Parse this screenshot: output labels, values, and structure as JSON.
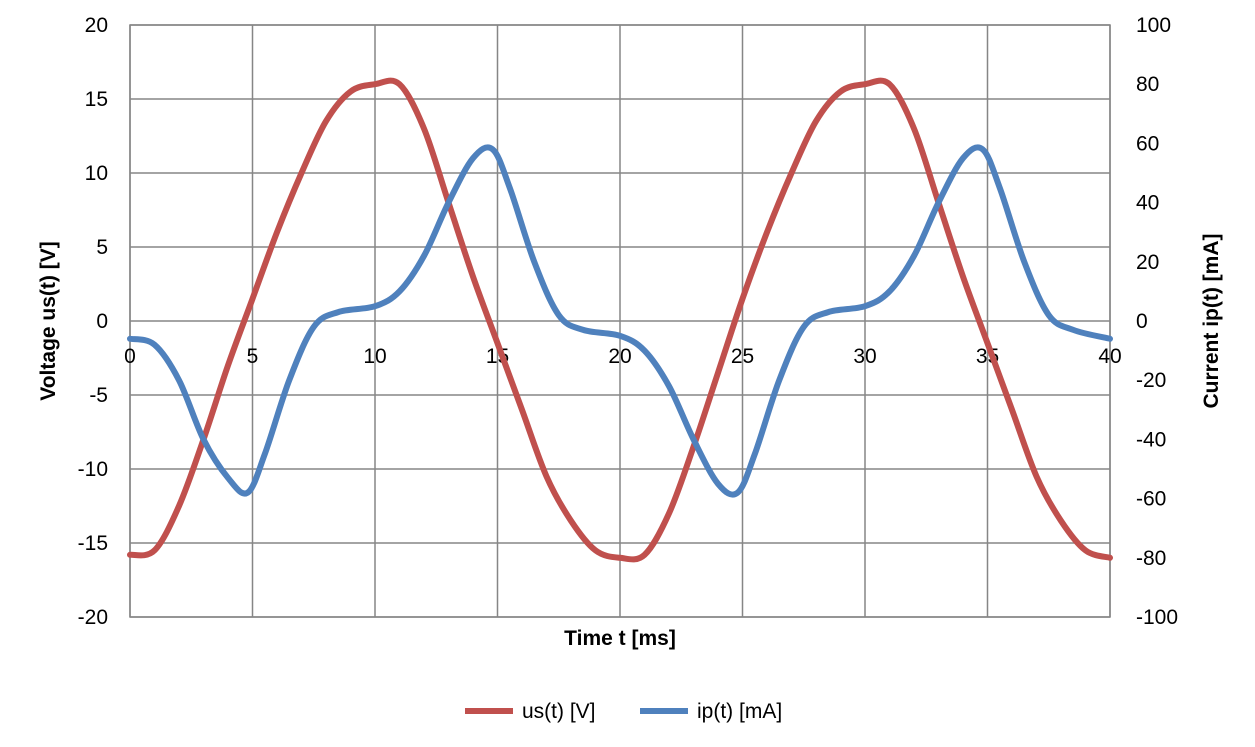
{
  "chart_data": {
    "type": "line",
    "xlabel": "Time t [ms]",
    "ylabel_left": "Voltage us(t) [V]",
    "ylabel_right": "Current ip(t) [mA]",
    "x_ticks": [
      0,
      5,
      10,
      15,
      20,
      25,
      30,
      35,
      40
    ],
    "y_left_ticks": [
      -20,
      -15,
      -10,
      -5,
      0,
      5,
      10,
      15,
      20
    ],
    "y_right_ticks": [
      -100,
      -80,
      -60,
      -40,
      -20,
      0,
      20,
      40,
      60,
      80,
      100
    ],
    "xlim": [
      0,
      40
    ],
    "ylim_left": [
      -20,
      20
    ],
    "ylim_right": [
      -100,
      100
    ],
    "grid": true,
    "legend_position": "bottom",
    "series": [
      {
        "name": "us(t) [V]",
        "axis": "left",
        "color": "#C0504D",
        "x": [
          0,
          1,
          2,
          3,
          4,
          5,
          6,
          7,
          8,
          9,
          10,
          11,
          12,
          13,
          14,
          15,
          16,
          17,
          18,
          19,
          20,
          21,
          22,
          23,
          24,
          25,
          26,
          27,
          28,
          29,
          30,
          31,
          32,
          33,
          34,
          35,
          36,
          37,
          38,
          39,
          40
        ],
        "values": [
          -15.8,
          -15.5,
          -12.5,
          -8,
          -3,
          1.5,
          6,
          10,
          13.5,
          15.5,
          16,
          16,
          13,
          8,
          3,
          -1.5,
          -6,
          -10.5,
          -13.5,
          -15.5,
          -16,
          -15.8,
          -13,
          -8.5,
          -3.5,
          1.5,
          6,
          10,
          13.5,
          15.5,
          16,
          16,
          13,
          8,
          3,
          -1.5,
          -6,
          -10.5,
          -13.5,
          -15.5,
          -16
        ]
      },
      {
        "name": "ip(t) [mA]",
        "axis": "right",
        "color": "#4F81BD",
        "x": [
          0,
          1,
          2,
          3,
          4,
          4.8,
          5.5,
          6.5,
          7.5,
          8.5,
          10,
          11,
          12,
          13,
          14,
          14.8,
          15.5,
          16.5,
          17.5,
          18.5,
          20,
          21,
          22,
          23,
          24,
          24.8,
          25.5,
          26.5,
          27.5,
          28.5,
          30,
          31,
          32,
          33,
          34,
          34.8,
          35.5,
          36.5,
          37.5,
          38.5,
          40
        ],
        "values": [
          -6,
          -8,
          -20,
          -40,
          -53,
          -58,
          -45,
          -20,
          -2,
          3,
          5,
          10,
          22,
          40,
          55,
          58,
          45,
          20,
          2,
          -3,
          -5,
          -10,
          -22,
          -40,
          -55,
          -58,
          -45,
          -20,
          -2,
          3,
          5,
          10,
          22,
          40,
          55,
          58,
          45,
          20,
          2,
          -3,
          -6
        ]
      }
    ]
  }
}
